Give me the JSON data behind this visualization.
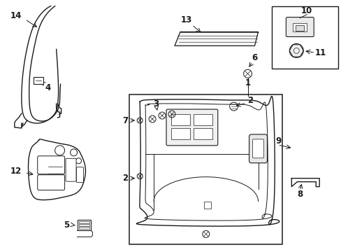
{
  "bg_color": "#ffffff",
  "line_color": "#1a1a1a",
  "label_color": "#111111",
  "fig_width": 4.89,
  "fig_height": 3.6,
  "dpi": 100
}
